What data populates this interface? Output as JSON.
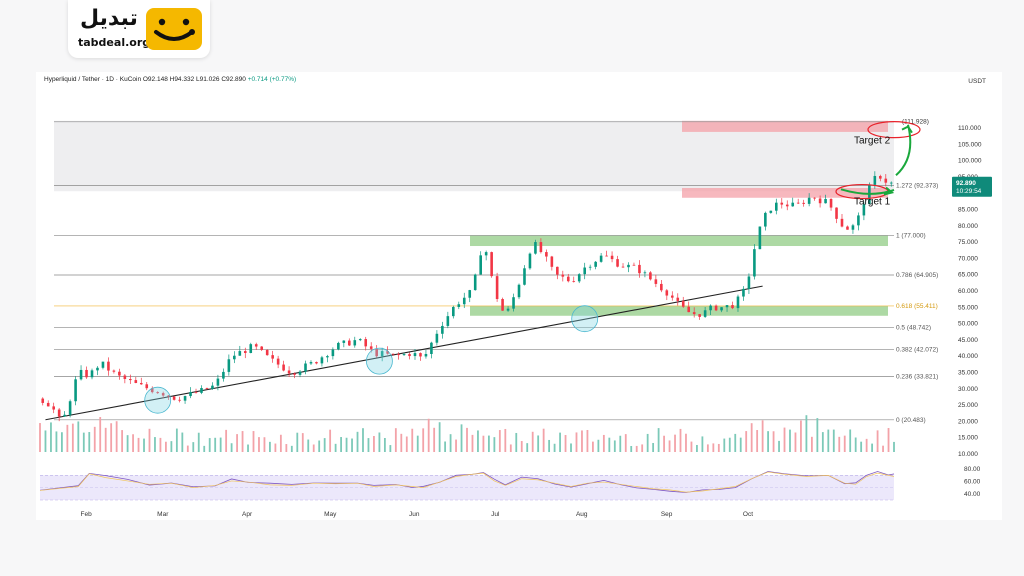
{
  "logo": {
    "arabic": "تبدیل",
    "latin": "tabdeal.org"
  },
  "header": {
    "symbol": "Hyperliquid / Tether · 1D · KuCoin",
    "open": "O92.148",
    "high": "H94.332",
    "low": "L91.026",
    "close": "C92.890",
    "change": "+0.714 (+0.77%)"
  },
  "currency": "USDT",
  "price_badge": {
    "price": "92.890",
    "countdown": "10:29:54"
  },
  "colors": {
    "up": "#089981",
    "down": "#f23645",
    "resistance_zone": "#f4a0a8",
    "support_zone": "#92cc86",
    "fib_618": "#f2b636",
    "annotation": "#e8222b",
    "arrow": "#1aa83c"
  },
  "chart_data": {
    "type": "candlestick",
    "xlabels": [
      "Feb",
      "Mar",
      "Apr",
      "May",
      "Jun",
      "Jul",
      "Aug",
      "Sep",
      "Oct"
    ],
    "price_axis": {
      "min": 0,
      "max": 120,
      "ticks": [
        "110.000",
        "105.000",
        "100.000",
        "95.000",
        "90.000",
        "85.000",
        "80.000",
        "75.000",
        "70.000",
        "65.000",
        "60.000",
        "55.000",
        "50.000",
        "45.000",
        "40.000",
        "35.000",
        "30.000",
        "25.000",
        "20.000",
        "15.000",
        "10.000"
      ]
    },
    "rsi_axis": {
      "ticks": [
        "80.00",
        "60.00",
        "40.00"
      ]
    },
    "fib_levels": [
      {
        "label": "1.272 (92.373)",
        "value": 92.373
      },
      {
        "label": "1 (77.000)",
        "value": 77.0
      },
      {
        "label": "0.786 (64.905)",
        "value": 64.905
      },
      {
        "label": "0.618 (55.411)",
        "value": 55.411
      },
      {
        "label": "0.5 (48.742)",
        "value": 48.742
      },
      {
        "label": "0.382 (42.072)",
        "value": 42.072
      },
      {
        "label": "0.236 (33.821)",
        "value": 33.821
      },
      {
        "label": "0 (20.483)",
        "value": 20.483
      }
    ],
    "top_level": {
      "label": "(111.928)",
      "value": 111.928
    },
    "targets": [
      {
        "label": "Target 1",
        "value": 90.5
      },
      {
        "label": "Target 2",
        "value": 109.5
      }
    ],
    "zones": [
      {
        "kind": "resistance",
        "from": 108.8,
        "to": 112.2
      },
      {
        "kind": "resistance",
        "from": 88.6,
        "to": 91.6
      },
      {
        "kind": "support",
        "from": 73.8,
        "to": 77.1
      },
      {
        "kind": "support",
        "from": 52.4,
        "to": 55.4
      }
    ],
    "trendline": {
      "start": {
        "date": "Jan 16",
        "price": 20.5
      },
      "end": {
        "date": "Oct 5",
        "price": 61.5
      }
    },
    "trendline_touches": [
      {
        "date": "Feb 26",
        "price": 26.5
      },
      {
        "date": "May 18",
        "price": 38.5
      },
      {
        "date": "Aug 1",
        "price": 51.5
      }
    ],
    "price_path": [
      [
        0,
        27
      ],
      [
        4,
        25
      ],
      [
        8,
        19
      ],
      [
        14,
        35
      ],
      [
        18,
        34
      ],
      [
        22,
        38
      ],
      [
        28,
        34
      ],
      [
        36,
        31
      ],
      [
        44,
        29
      ],
      [
        50,
        27
      ],
      [
        58,
        29
      ],
      [
        64,
        31
      ],
      [
        70,
        40
      ],
      [
        78,
        43
      ],
      [
        84,
        39
      ],
      [
        92,
        35
      ],
      [
        100,
        38
      ],
      [
        108,
        43
      ],
      [
        116,
        45
      ],
      [
        122,
        41
      ],
      [
        130,
        40
      ],
      [
        136,
        41
      ],
      [
        140,
        39
      ],
      [
        146,
        49
      ],
      [
        152,
        56
      ],
      [
        158,
        60
      ],
      [
        162,
        76
      ],
      [
        166,
        60
      ],
      [
        170,
        52
      ],
      [
        174,
        60
      ],
      [
        180,
        75
      ],
      [
        184,
        71
      ],
      [
        188,
        65
      ],
      [
        194,
        63
      ],
      [
        200,
        68
      ],
      [
        206,
        71
      ],
      [
        212,
        68
      ],
      [
        218,
        67
      ],
      [
        224,
        63
      ],
      [
        230,
        59
      ],
      [
        234,
        55
      ],
      [
        238,
        53
      ],
      [
        242,
        53
      ],
      [
        246,
        55
      ],
      [
        250,
        55
      ],
      [
        254,
        56
      ],
      [
        258,
        61
      ],
      [
        262,
        77
      ],
      [
        266,
        85
      ],
      [
        270,
        87
      ],
      [
        276,
        86
      ],
      [
        282,
        89
      ],
      [
        288,
        87
      ],
      [
        294,
        79
      ],
      [
        298,
        80
      ],
      [
        302,
        90
      ],
      [
        306,
        96
      ],
      [
        310,
        93
      ],
      [
        312,
        92.9
      ]
    ],
    "rsi_path": [
      [
        0,
        45
      ],
      [
        14,
        52
      ],
      [
        18,
        75
      ],
      [
        24,
        68
      ],
      [
        32,
        62
      ],
      [
        40,
        56
      ],
      [
        48,
        58
      ],
      [
        56,
        50
      ],
      [
        64,
        54
      ],
      [
        70,
        62
      ],
      [
        76,
        60
      ],
      [
        84,
        55
      ],
      [
        92,
        54
      ],
      [
        100,
        58
      ],
      [
        108,
        57
      ],
      [
        116,
        58
      ],
      [
        122,
        52
      ],
      [
        130,
        55
      ],
      [
        136,
        52
      ],
      [
        140,
        50
      ],
      [
        146,
        60
      ],
      [
        152,
        70
      ],
      [
        158,
        74
      ],
      [
        162,
        76
      ],
      [
        166,
        62
      ],
      [
        170,
        54
      ],
      [
        176,
        66
      ],
      [
        182,
        64
      ],
      [
        188,
        58
      ],
      [
        194,
        52
      ],
      [
        200,
        58
      ],
      [
        206,
        60
      ],
      [
        212,
        56
      ],
      [
        218,
        52
      ],
      [
        224,
        48
      ],
      [
        230,
        46
      ],
      [
        236,
        42
      ],
      [
        242,
        44
      ],
      [
        248,
        48
      ],
      [
        254,
        52
      ],
      [
        260,
        66
      ],
      [
        266,
        78
      ],
      [
        272,
        74
      ],
      [
        280,
        70
      ],
      [
        288,
        72
      ],
      [
        294,
        58
      ],
      [
        298,
        56
      ],
      [
        302,
        70
      ],
      [
        306,
        76
      ],
      [
        310,
        72
      ],
      [
        312,
        70
      ]
    ]
  }
}
